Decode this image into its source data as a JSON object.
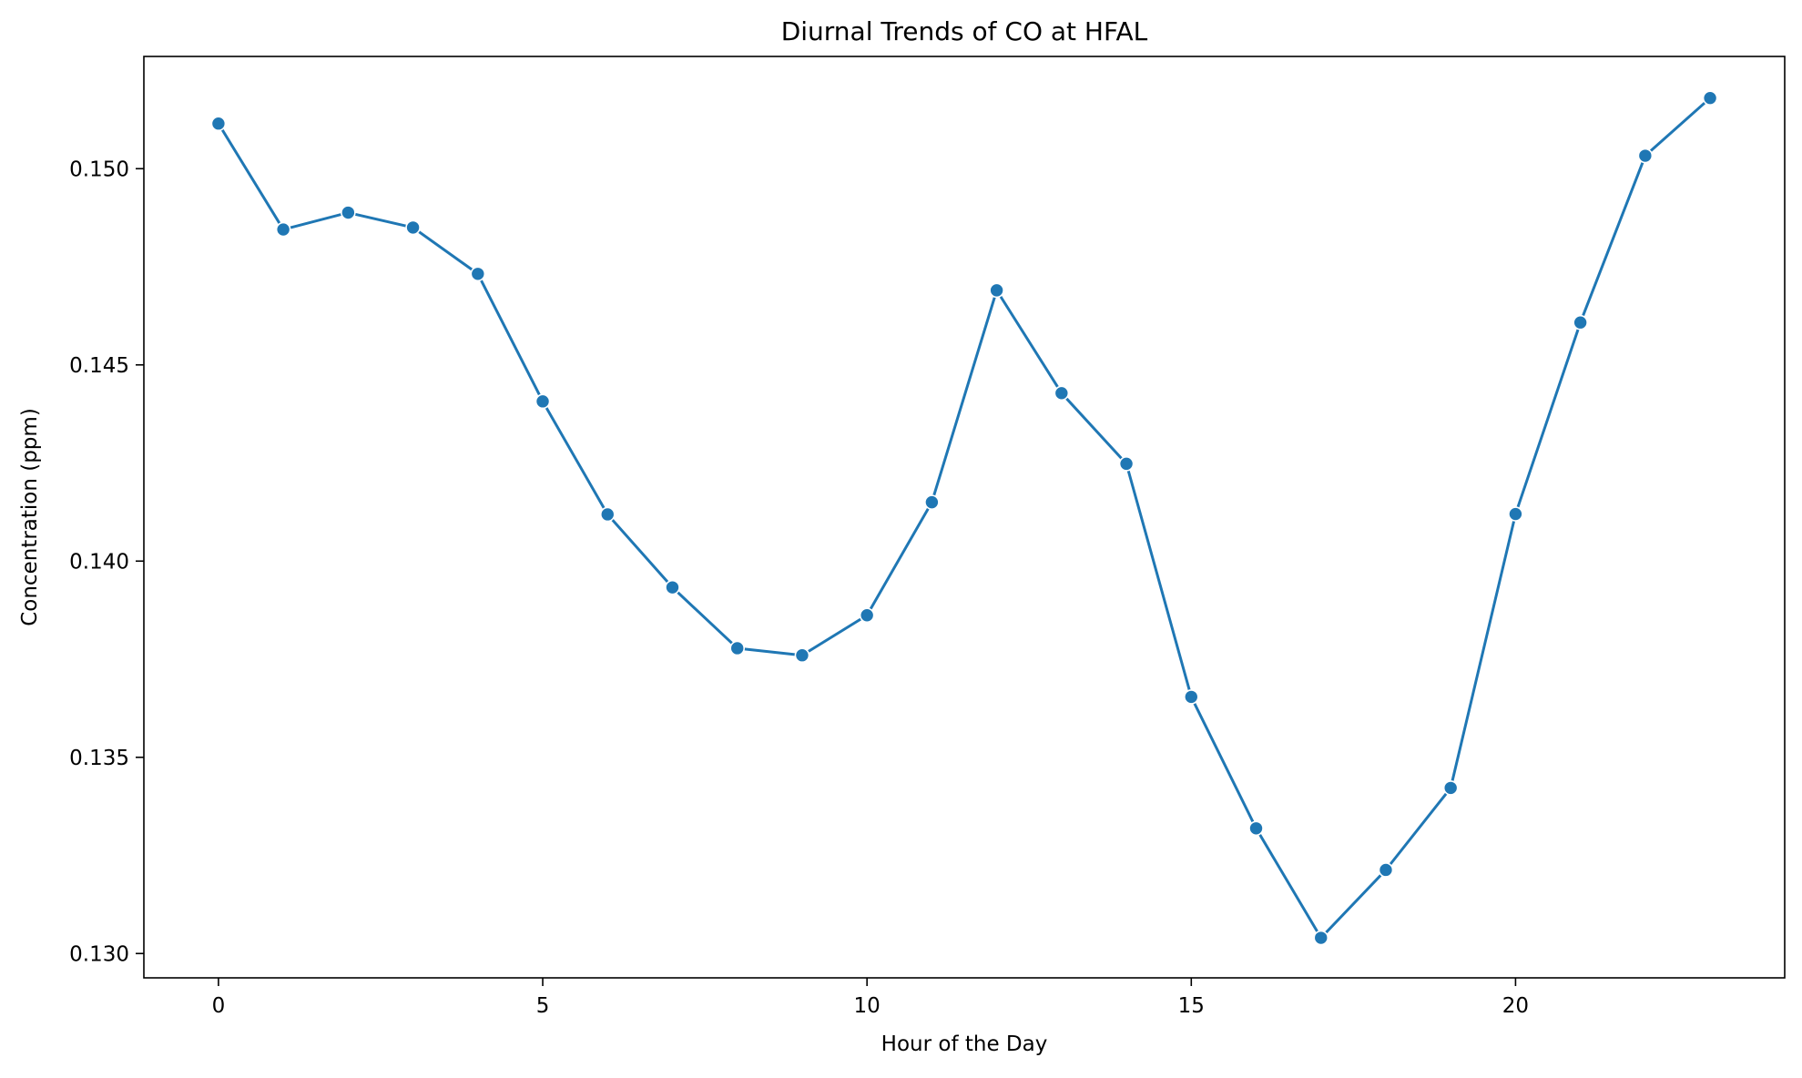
{
  "chart_data": {
    "type": "line",
    "title": "Diurnal Trends of CO at HFAL",
    "xlabel": "Hour of the Day",
    "ylabel": "Concentration (ppm)",
    "xlim": [
      -1.15,
      24.15
    ],
    "ylim": [
      0.12938,
      0.15286
    ],
    "x_ticks": [
      0,
      5,
      10,
      15,
      20
    ],
    "x_tick_labels": [
      "0",
      "5",
      "10",
      "15",
      "20"
    ],
    "y_ticks": [
      0.13,
      0.135,
      0.14,
      0.145,
      0.15
    ],
    "y_tick_labels": [
      "0.130",
      "0.135",
      "0.140",
      "0.145",
      "0.150"
    ],
    "grid": false,
    "legend": "none",
    "marker": "circle",
    "colors": {
      "series": "#1f77b4",
      "marker_edge": "#ffffff",
      "axes": "#000000"
    },
    "series": [
      {
        "x": [
          0,
          1,
          2,
          3,
          4,
          5,
          6,
          7,
          8,
          9,
          10,
          11,
          12,
          13,
          14,
          15,
          16,
          17,
          18,
          19,
          20,
          21,
          22,
          23
        ],
        "values": [
          0.15115,
          0.14845,
          0.14888,
          0.1485,
          0.14732,
          0.14407,
          0.14119,
          0.13933,
          0.13778,
          0.1376,
          0.13862,
          0.1415,
          0.1469,
          0.14428,
          0.14248,
          0.13654,
          0.13319,
          0.1304,
          0.13213,
          0.13422,
          0.1412,
          0.14608,
          0.15033,
          0.1518
        ]
      }
    ]
  }
}
